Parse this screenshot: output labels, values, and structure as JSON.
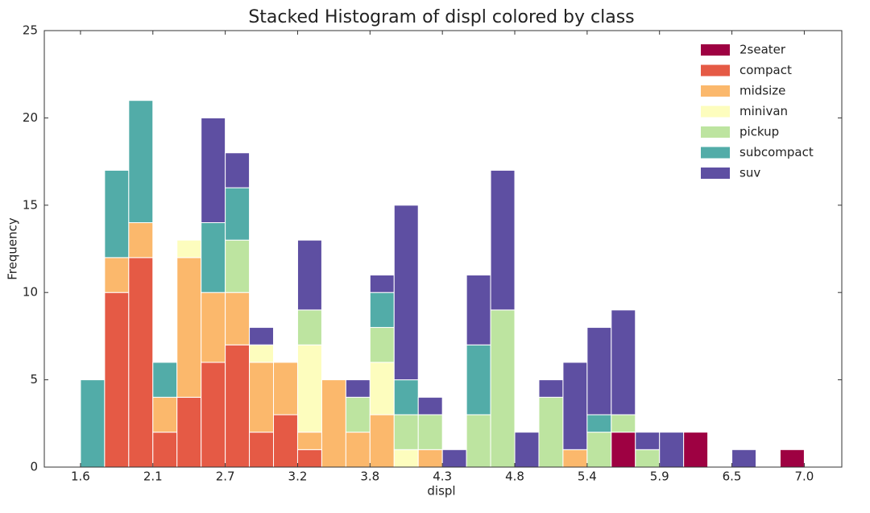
{
  "chart_data": {
    "type": "stacked_histogram",
    "title": "Stacked Histogram of displ colored by class",
    "xlabel": "displ",
    "ylabel": "Frequency",
    "bins": [
      1.6,
      1.78,
      1.96,
      2.14,
      2.32,
      2.5,
      2.68,
      2.86,
      3.04,
      3.22,
      3.4,
      3.58,
      3.76,
      3.94,
      4.12,
      4.3,
      4.48,
      4.66,
      4.84,
      5.02,
      5.2,
      5.38,
      5.56,
      5.74,
      5.92,
      6.1,
      6.28,
      6.46,
      6.64,
      6.82,
      7.0
    ],
    "series": [
      {
        "name": "2seater",
        "color": "#9e0142",
        "values": [
          0,
          0,
          0,
          0,
          0,
          0,
          0,
          0,
          0,
          0,
          0,
          0,
          0,
          0,
          0,
          0,
          0,
          0,
          0,
          0,
          0,
          0,
          2,
          0,
          0,
          2,
          0,
          0,
          0,
          1
        ]
      },
      {
        "name": "compact",
        "color": "#e55a45",
        "values": [
          0,
          10,
          12,
          2,
          4,
          6,
          7,
          2,
          3,
          1,
          0,
          0,
          0,
          0,
          0,
          0,
          0,
          0,
          0,
          0,
          0,
          0,
          0,
          0,
          0,
          0,
          0,
          0,
          0,
          0
        ]
      },
      {
        "name": "midsize",
        "color": "#fbb86c",
        "values": [
          0,
          2,
          2,
          2,
          8,
          4,
          3,
          4,
          3,
          1,
          5,
          2,
          3,
          0,
          1,
          0,
          0,
          0,
          0,
          0,
          1,
          0,
          0,
          0,
          0,
          0,
          0,
          0,
          0,
          0
        ]
      },
      {
        "name": "minivan",
        "color": "#fdfdbe",
        "values": [
          0,
          0,
          0,
          0,
          1,
          0,
          0,
          1,
          0,
          5,
          0,
          0,
          3,
          1,
          0,
          0,
          0,
          0,
          0,
          0,
          0,
          0,
          0,
          0,
          0,
          0,
          0,
          0,
          0,
          0
        ]
      },
      {
        "name": "pickup",
        "color": "#bde4a0",
        "values": [
          0,
          0,
          0,
          0,
          0,
          0,
          3,
          0,
          0,
          2,
          0,
          2,
          2,
          2,
          2,
          0,
          3,
          9,
          0,
          4,
          0,
          2,
          1,
          1,
          0,
          0,
          0,
          0,
          0,
          0
        ]
      },
      {
        "name": "subcompact",
        "color": "#52aca8",
        "values": [
          5,
          5,
          7,
          2,
          0,
          4,
          3,
          0,
          0,
          0,
          0,
          0,
          2,
          2,
          0,
          0,
          4,
          0,
          0,
          0,
          0,
          1,
          0,
          0,
          0,
          0,
          0,
          0,
          0,
          0
        ]
      },
      {
        "name": "suv",
        "color": "#5e4fa2",
        "values": [
          0,
          0,
          0,
          0,
          0,
          6,
          2,
          1,
          0,
          4,
          0,
          1,
          1,
          10,
          1,
          1,
          4,
          8,
          2,
          1,
          5,
          5,
          6,
          1,
          2,
          0,
          0,
          1,
          0,
          0
        ]
      }
    ],
    "xlim": [
      1.33,
      7.28
    ],
    "xticks": [
      {
        "value": 1.6,
        "label": "1.6"
      },
      {
        "value": 2.14,
        "label": "2.1"
      },
      {
        "value": 2.68,
        "label": "2.7"
      },
      {
        "value": 3.22,
        "label": "3.2"
      },
      {
        "value": 3.76,
        "label": "3.8"
      },
      {
        "value": 4.3,
        "label": "4.3"
      },
      {
        "value": 4.84,
        "label": "4.8"
      },
      {
        "value": 5.38,
        "label": "5.4"
      },
      {
        "value": 5.92,
        "label": "5.9"
      },
      {
        "value": 6.46,
        "label": "6.5"
      },
      {
        "value": 7.0,
        "label": "7.0"
      }
    ],
    "ylim": [
      0,
      25
    ],
    "yticks": [
      0,
      5,
      10,
      15,
      20,
      25
    ],
    "grid": false,
    "legend": "upper right"
  }
}
